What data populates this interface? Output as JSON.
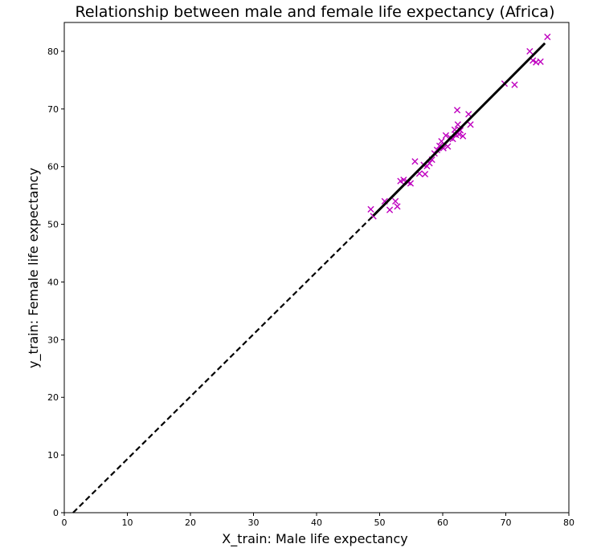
{
  "chart_data": {
    "type": "scatter",
    "title": "Relationship between male and female life expectancy (Africa)",
    "xlabel": "X_train: Male life expectancy",
    "ylabel": "y_train: Female life expectancy",
    "xlim": [
      0,
      80
    ],
    "ylim": [
      0,
      85
    ],
    "x_ticks": [
      0,
      10,
      20,
      30,
      40,
      50,
      60,
      70,
      80
    ],
    "y_ticks": [
      0,
      10,
      20,
      30,
      40,
      50,
      60,
      70,
      80
    ],
    "x_tick_labels": [
      "0",
      "10",
      "20",
      "30",
      "40",
      "50",
      "60",
      "70",
      "80"
    ],
    "y_tick_labels": [
      "0",
      "10",
      "20",
      "30",
      "40",
      "50",
      "60",
      "70",
      "80"
    ],
    "grid": false,
    "legend": false,
    "series": [
      {
        "kind": "scatter",
        "marker": "x",
        "color": "#bf00bf",
        "points": [
          [
            48.6,
            52.6
          ],
          [
            49.0,
            51.4
          ],
          [
            50.8,
            54.0
          ],
          [
            51.6,
            52.5
          ],
          [
            52.5,
            54.0
          ],
          [
            52.8,
            53.1
          ],
          [
            53.3,
            57.5
          ],
          [
            53.8,
            57.7
          ],
          [
            54.5,
            57.3
          ],
          [
            54.9,
            57.1
          ],
          [
            55.6,
            60.9
          ],
          [
            56.3,
            58.8
          ],
          [
            57.0,
            60.3
          ],
          [
            57.2,
            58.7
          ],
          [
            57.5,
            60.1
          ],
          [
            57.9,
            60.6
          ],
          [
            58.3,
            61.2
          ],
          [
            58.7,
            62.3
          ],
          [
            59.1,
            62.9
          ],
          [
            59.5,
            63.6
          ],
          [
            59.8,
            64.4
          ],
          [
            60.1,
            63.2
          ],
          [
            60.5,
            65.4
          ],
          [
            60.8,
            63.5
          ],
          [
            61.2,
            65.0
          ],
          [
            61.6,
            64.8
          ],
          [
            61.9,
            66.4
          ],
          [
            62.1,
            65.5
          ],
          [
            62.3,
            69.8
          ],
          [
            62.4,
            67.3
          ],
          [
            62.6,
            65.6
          ],
          [
            62.8,
            66.3
          ],
          [
            63.2,
            65.3
          ],
          [
            64.1,
            69.1
          ],
          [
            64.4,
            67.3
          ],
          [
            69.8,
            74.4
          ],
          [
            71.4,
            74.2
          ],
          [
            73.8,
            80.0
          ],
          [
            74.3,
            78.4
          ],
          [
            74.8,
            78.1
          ],
          [
            75.5,
            78.2
          ],
          [
            76.6,
            82.5
          ]
        ]
      },
      {
        "kind": "line",
        "style": "solid",
        "color": "#000000",
        "points": [
          [
            49.0,
            51.5
          ],
          [
            76.2,
            81.4
          ]
        ]
      },
      {
        "kind": "line",
        "style": "dashed",
        "color": "#000000",
        "points": [
          [
            1.4,
            0.0
          ],
          [
            49.0,
            51.5
          ]
        ]
      }
    ]
  }
}
